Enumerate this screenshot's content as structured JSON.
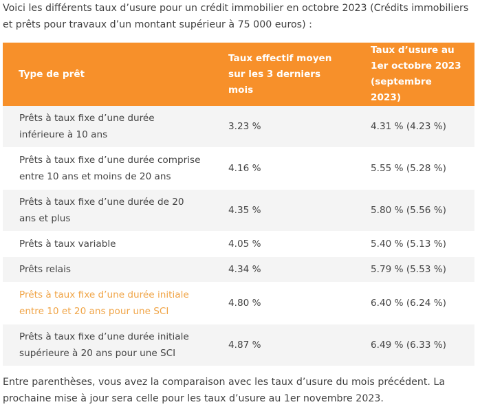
{
  "intro": "Voici les différents taux d’usure pour un crédit immobilier en octobre 2023 (Crédits immobiliers et prêts pour travaux d’un montant supérieur à 75 000 euros) :",
  "table": {
    "headers": [
      "Type de prêt",
      "Taux effectif moyen sur les 3 derniers mois",
      "Taux d’usure au 1er octobre 2023 (septembre 2023)"
    ],
    "rows": [
      {
        "type": "Prêts à taux fixe d’une durée inférieure à 10 ans",
        "taux_moyen": "3.23 %",
        "taux_usure": "4.31 % (4.23 %)"
      },
      {
        "type": "Prêts à taux fixe d’une durée comprise entre 10 ans et moins de 20 ans",
        "taux_moyen": "4.16 %",
        "taux_usure": "5.55 % (5.28 %)"
      },
      {
        "type": "Prêts à taux fixe d’une durée de 20 ans et plus",
        "taux_moyen": "4.35 %",
        "taux_usure": "5.80 % (5.56 %)"
      },
      {
        "type": "Prêts à taux variable",
        "taux_moyen": "4.05 %",
        "taux_usure": "5.40 % (5.13 %)"
      },
      {
        "type": "Prêts relais",
        "taux_moyen": "4.34 %",
        "taux_usure": "5.79 % (5.53 %)"
      },
      {
        "type": "Prêts à taux fixe d’une durée initiale entre 10 et 20 ans pour une SCI",
        "taux_moyen": "4.80 %",
        "taux_usure": "6.40 % (6.24 %)"
      },
      {
        "type": "Prêts à taux fixe d’une durée initiale supérieure à 20 ans pour une SCI",
        "taux_moyen": "4.87 %",
        "taux_usure": "6.49 % (6.33 %)"
      }
    ]
  },
  "outro": "Entre parenthèses, vous avez la comparaison avec les taux d’usure du mois précédent. La prochaine mise à jour sera celle pour les taux d’usure au 1er novembre 2023.",
  "colors": {
    "header_bg": "#f7902a",
    "header_text": "#ffffff",
    "row_alt_bg": "#f4f4f4",
    "highlight_text": "#f0a446"
  }
}
